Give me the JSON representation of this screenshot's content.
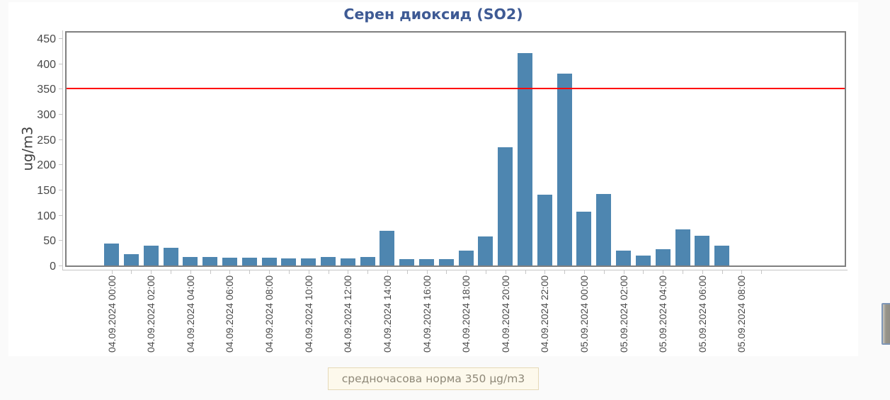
{
  "page": {
    "background_color": "#fafafa",
    "panel_background_color": "#ffffff"
  },
  "chart": {
    "title": "Серен диоксид (SO2)",
    "title_color": "#3e5a94",
    "bar_color": "#4e86b0",
    "y_axis": {
      "title": "ug/m3",
      "tick_values": [
        0,
        50,
        100,
        150,
        200,
        250,
        300,
        350,
        400,
        450
      ]
    },
    "x_axis": {
      "labels": [
        "04.09.2024 00:00",
        "04.09.2024 02:00",
        "04.09.2024 04:00",
        "04.09.2024 06:00",
        "04.09.2024 08:00",
        "04.09.2024 10:00",
        "04.09.2024 12:00",
        "04.09.2024 14:00",
        "04.09.2024 16:00",
        "04.09.2024 18:00",
        "04.09.2024 20:00",
        "04.09.2024 22:00",
        "05.09.2024 00:00",
        "05.09.2024 02:00",
        "05.09.2024 04:00",
        "05.09.2024 06:00",
        "05.09.2024 08:00"
      ]
    },
    "limit_line": {
      "value": 350,
      "color": "#ff0000"
    }
  },
  "legend": {
    "text": "средночасова норма 350 µg/m3",
    "background_color": "#fdf9ec",
    "border_color": "#e5d9b8",
    "text_color": "#8e8878"
  },
  "chart_data": {
    "type": "bar",
    "title": "Серен диоксид (SO2)",
    "xlabel": "",
    "ylabel": "ug/m3",
    "categories": [
      "04.09.2024 00:00",
      "04.09.2024 01:00",
      "04.09.2024 02:00",
      "04.09.2024 03:00",
      "04.09.2024 04:00",
      "04.09.2024 05:00",
      "04.09.2024 06:00",
      "04.09.2024 07:00",
      "04.09.2024 08:00",
      "04.09.2024 09:00",
      "04.09.2024 10:00",
      "04.09.2024 11:00",
      "04.09.2024 12:00",
      "04.09.2024 13:00",
      "04.09.2024 14:00",
      "04.09.2024 15:00",
      "04.09.2024 16:00",
      "04.09.2024 17:00",
      "04.09.2024 18:00",
      "04.09.2024 19:00",
      "04.09.2024 20:00",
      "04.09.2024 21:00",
      "04.09.2024 22:00",
      "04.09.2024 23:00",
      "05.09.2024 00:00",
      "05.09.2024 01:00",
      "05.09.2024 02:00",
      "05.09.2024 03:00",
      "05.09.2024 04:00",
      "05.09.2024 05:00",
      "05.09.2024 06:00",
      "05.09.2024 07:00"
    ],
    "values": [
      44,
      23,
      40,
      35,
      17,
      17,
      16,
      15,
      15,
      14,
      14,
      17,
      14,
      17,
      69,
      13,
      13,
      13,
      30,
      57,
      234,
      420,
      140,
      380,
      107,
      141,
      30,
      19,
      33,
      72,
      59,
      40
    ],
    "ylim": [
      0,
      466
    ],
    "grid": false,
    "legend_position": "bottom",
    "reference_line": {
      "value": 350,
      "label": "средночасова норма 350 µg/m3",
      "color": "#ff0000"
    }
  },
  "scrollbar": {
    "present": true
  }
}
